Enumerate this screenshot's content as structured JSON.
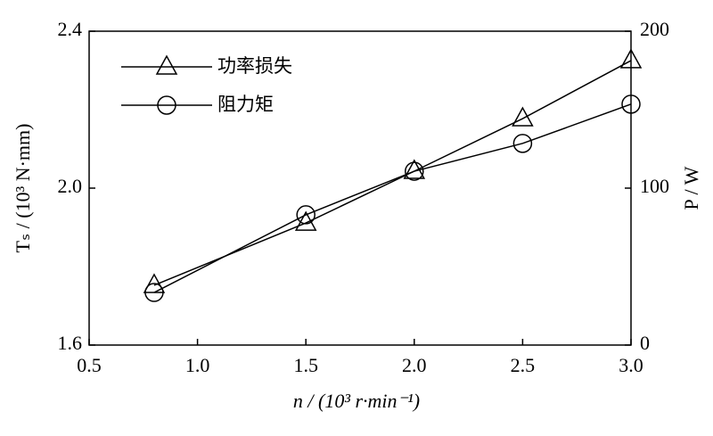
{
  "chart_data": {
    "type": "line",
    "xlabel": "n / (10³ r·min⁻¹)",
    "ylabel": "Tₛ / (10³ N·mm)",
    "y2label": "P / W",
    "x": [
      0.8,
      1.5,
      2.0,
      2.5,
      3.0
    ],
    "series": [
      {
        "name": "功率损失",
        "color": "#000000",
        "marker": "triangle",
        "axis": "y2",
        "values": [
          38.1,
          77.8,
          110.8,
          144.3,
          181.3
        ]
      },
      {
        "name": "阻力矩",
        "color": "#000000",
        "marker": "circle",
        "values": [
          1.734,
          1.932,
          2.043,
          2.114,
          2.214
        ]
      }
    ],
    "xlim": [
      0.5,
      3.0
    ],
    "xticks": [
      0.5,
      {
        "value": 1,
        "label": "1.0"
      },
      1.5,
      {
        "value": 2,
        "label": "2.0"
      },
      2.5,
      {
        "value": 3,
        "label": "3.0"
      }
    ],
    "ylim": [
      1.6,
      2.4
    ],
    "yticks": [
      1.6,
      {
        "value": 2,
        "label": "2.0"
      },
      2.4
    ],
    "y2lim": [
      0,
      200
    ],
    "y2ticks": [
      0,
      100,
      200
    ],
    "legend": "upper-left"
  }
}
